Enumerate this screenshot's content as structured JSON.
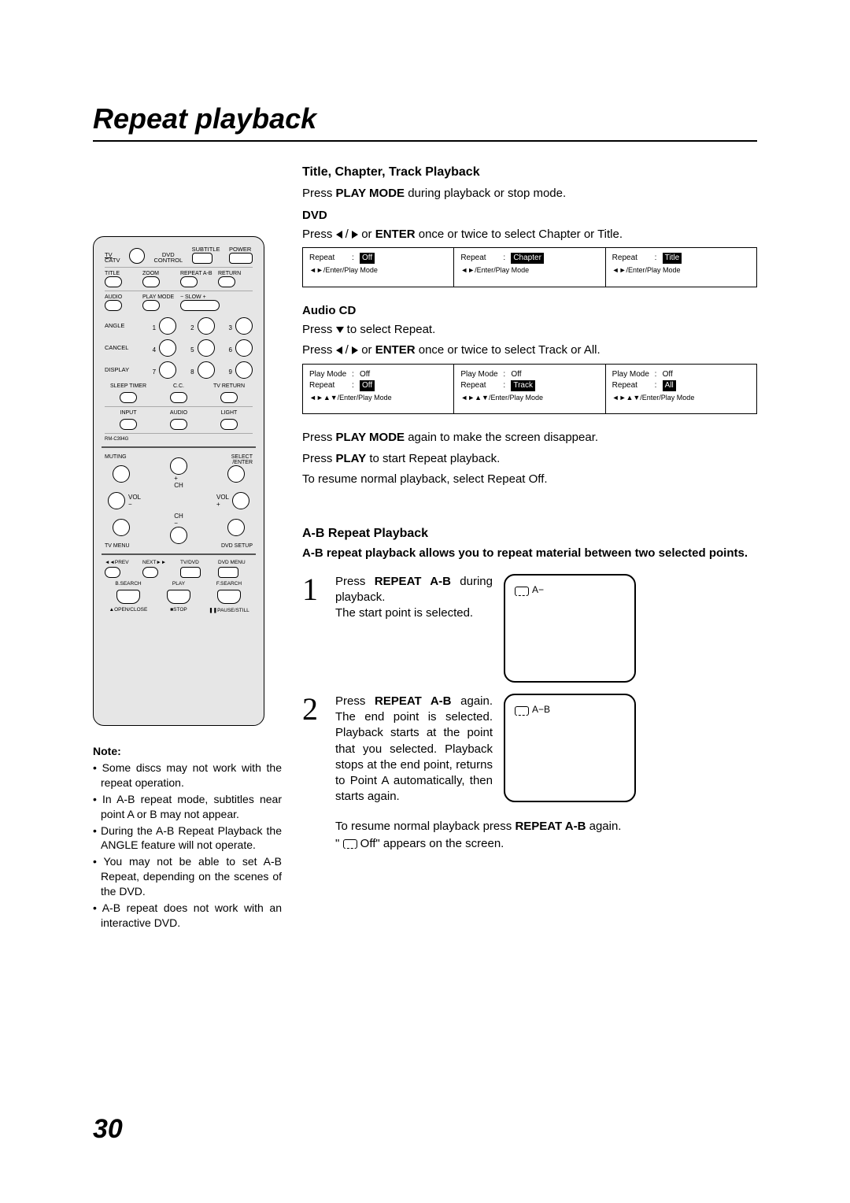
{
  "page_number": "30",
  "title": "Repeat playback",
  "remote": {
    "row1": [
      "TV",
      "CATV",
      "DVD CONTROL",
      "SUBTITLE",
      "POWER"
    ],
    "row2": [
      "TITLE",
      "ZOOM",
      "REPEAT A-B",
      "RETURN"
    ],
    "row3": [
      "AUDIO",
      "PLAY MODE",
      "−  SLOW  +"
    ],
    "row4_left": "ANGLE",
    "row5_left": "CANCEL",
    "row6_left": "DISPLAY",
    "nums": [
      "1",
      "2",
      "3",
      "4",
      "5",
      "6",
      "7",
      "8",
      "9"
    ],
    "row7": [
      "SLEEP TIMER",
      "C.C.",
      "TV RETURN"
    ],
    "row8": [
      "INPUT",
      "AUDIO",
      "LIGHT"
    ],
    "model": "RM-C394G",
    "pad": {
      "muting": "MUTING",
      "select_enter": "SELECT/ENTER",
      "ch": "CH",
      "vol": "VOL",
      "tv_menu": "TV MENU",
      "dvd_setup": "DVD SETUP"
    },
    "transport": {
      "prev": "PREV",
      "next": "NEXT",
      "tvdvd": "TV/DVD",
      "dvdmenu": "DVD MENU",
      "bsearch": "B.SEARCH",
      "play": "PLAY",
      "fsearch": "F.SEARCH",
      "open": "OPEN/CLOSE",
      "stop": "STOP",
      "pause": "PAUSE/STILL"
    }
  },
  "note_head": "Note:",
  "notes": [
    "Some discs may not work with the repeat operation.",
    "In A-B repeat mode, subtitles near point A or B may not appear.",
    "During the A-B Repeat Playback the ANGLE feature will not operate.",
    "You may not be able to set A-B Repeat, depending on the scenes of the DVD.",
    "A-B repeat does not work with an interactive DVD."
  ],
  "section1": {
    "heading": "Title, Chapter, Track Playback",
    "intro_pre": "Press ",
    "intro_bold": "PLAY MODE",
    "intro_post": " during playback or stop mode.",
    "dvd_label": "DVD",
    "dvd_instr_pre": "Press ",
    "dvd_instr_mid": " or ",
    "dvd_instr_bold": "ENTER",
    "dvd_instr_post": " once or twice to select Chapter or Title.",
    "dvd_osd": [
      {
        "k": "Repeat",
        "v": "Off",
        "hl": true,
        "nav": "/Enter/Play Mode",
        "arrows": "lr"
      },
      {
        "k": "Repeat",
        "v": "Chapter",
        "hl": true,
        "nav": "/Enter/Play Mode",
        "arrows": "lr"
      },
      {
        "k": "Repeat",
        "v": "Title",
        "hl": true,
        "nav": "/Enter/Play Mode",
        "arrows": "lr"
      }
    ],
    "cd_label": "Audio CD",
    "cd_line1_pre": "Press ",
    "cd_line1_post": " to select Repeat.",
    "cd_line2_pre": "Press ",
    "cd_line2_mid": " or ",
    "cd_line2_bold": "ENTER",
    "cd_line2_post": " once or twice to select Track or All.",
    "cd_osd": [
      {
        "rows": [
          {
            "k": "Play Mode",
            "v": "Off",
            "hl": false
          },
          {
            "k": "Repeat",
            "v": "Off",
            "hl": true
          }
        ],
        "nav": "/Enter/Play Mode"
      },
      {
        "rows": [
          {
            "k": "Play Mode",
            "v": "Off",
            "hl": false
          },
          {
            "k": "Repeat",
            "v": "Track",
            "hl": true
          }
        ],
        "nav": "/Enter/Play Mode"
      },
      {
        "rows": [
          {
            "k": "Play Mode",
            "v": "Off",
            "hl": false
          },
          {
            "k": "Repeat",
            "v": "All",
            "hl": true
          }
        ],
        "nav": "/Enter/Play Mode"
      }
    ],
    "after1_pre": "Press ",
    "after1_bold": "PLAY MODE",
    "after1_post": " again to make the screen disappear.",
    "after2_pre": "Press ",
    "after2_bold": "PLAY",
    "after2_post": " to start Repeat playback.",
    "after3": "To resume normal playback, select Repeat Off."
  },
  "section2": {
    "heading": "A-B Repeat Playback",
    "desc": "A-B repeat playback allows you to repeat material between two selected points.",
    "step1": {
      "num": "1",
      "pre": "Press ",
      "bold": "REPEAT A-B",
      "mid": " during playback.",
      "post": "The start point is selected.",
      "tv": "A−"
    },
    "step2": {
      "num": "2",
      "pre": "Press ",
      "bold": "REPEAT A-B",
      "mid": " again. ",
      "post": "The end point is selected. Playback starts at the point that you selected. Playback stops at the end point, returns to Point A automatically, then starts again.",
      "tv": "A−B"
    },
    "resume_pre": "To resume normal playback press ",
    "resume_bold": "REPEAT A-B",
    "resume_post": " again.",
    "resume2_pre": "\" ",
    "resume2_mid": " Off",
    "resume2_post": "\" appears on the screen."
  }
}
